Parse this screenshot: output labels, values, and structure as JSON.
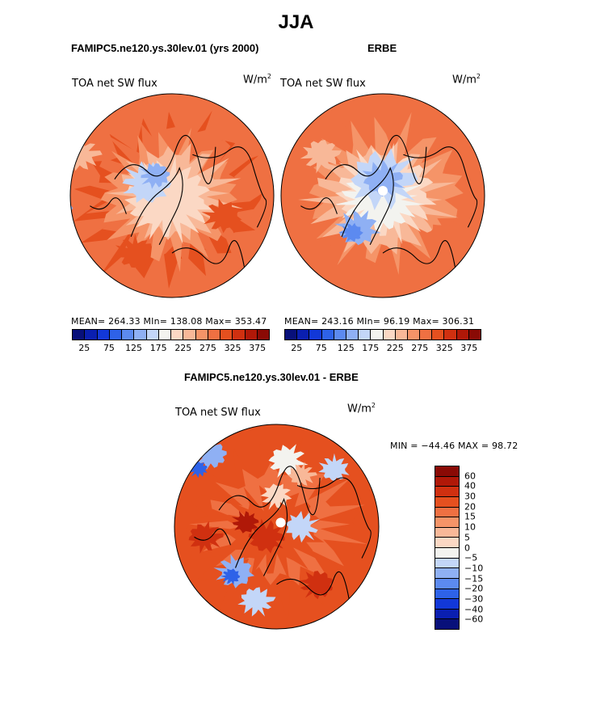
{
  "figure": {
    "title": "JJA"
  },
  "chart_data": [
    {
      "type": "heatmap",
      "projection": "north-polar-stereographic",
      "title": "FAMIPC5.ne120.ys.30lev.01 (yrs 2000)",
      "variable": "TOA net SW flux",
      "units": "W/m",
      "units_superscript": "2",
      "stats_text": "MEAN= 264.33   MIn= 138.08   Max= 353.47",
      "stats": {
        "mean": 264.33,
        "min": 138.08,
        "max": 353.47
      },
      "levels": [
        25,
        50,
        75,
        100,
        125,
        150,
        175,
        200,
        225,
        250,
        275,
        300,
        325,
        350,
        375
      ],
      "colorbar_labels": [
        "25",
        "75",
        "125",
        "175",
        "225",
        "275",
        "325",
        "375"
      ]
    },
    {
      "type": "heatmap",
      "projection": "north-polar-stereographic",
      "title": "ERBE",
      "variable": "TOA net SW flux",
      "units": "W/m",
      "units_superscript": "2",
      "stats_text": "MEAN= 243.16   MIn=  96.19   Max= 306.31",
      "stats": {
        "mean": 243.16,
        "min": 96.19,
        "max": 306.31
      },
      "levels": [
        25,
        50,
        75,
        100,
        125,
        150,
        175,
        200,
        225,
        250,
        275,
        300,
        325,
        350,
        375
      ],
      "colorbar_labels": [
        "25",
        "75",
        "125",
        "175",
        "225",
        "275",
        "325",
        "375"
      ]
    },
    {
      "type": "heatmap",
      "projection": "north-polar-stereographic",
      "title": "FAMIPC5.ne120.ys.30lev.01 - ERBE",
      "variable": "TOA net SW flux",
      "units": "W/m",
      "units_superscript": "2",
      "stats_text": "MIN = −44.46 MAX =  98.72",
      "stats": {
        "min": -44.46,
        "max": 98.72
      },
      "levels": [
        60,
        40,
        30,
        20,
        15,
        10,
        5,
        0,
        -5,
        -10,
        -15,
        -20,
        -30,
        -40,
        -60
      ],
      "colorbar_labels": [
        "60",
        "40",
        "30",
        "20",
        "15",
        "10",
        "5",
        "0",
        "−5",
        "−10",
        "−15",
        "−20",
        "−30",
        "−40",
        "−60"
      ]
    }
  ],
  "palette": [
    "#08107a",
    "#0a1fb0",
    "#1238d8",
    "#2e62e8",
    "#5c8af0",
    "#8fb0f4",
    "#c3d6f8",
    "#f3f3ef",
    "#fbd8c4",
    "#f8b898",
    "#f59468",
    "#ef7042",
    "#e5501f",
    "#d03010",
    "#b01808",
    "#8a0a05"
  ]
}
